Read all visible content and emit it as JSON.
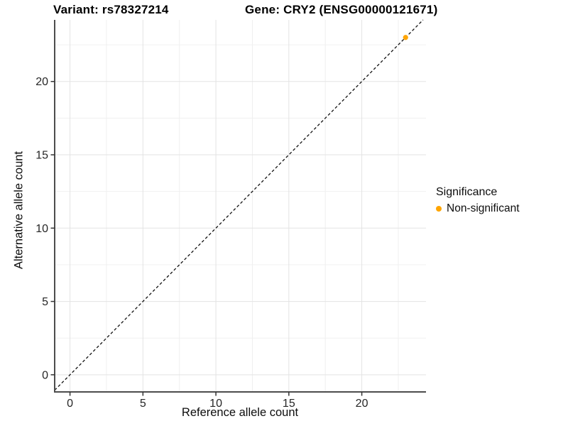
{
  "chart_data": {
    "type": "scatter",
    "title_left": "Variant: rs78327214",
    "title_right": "Gene: CRY2 (ENSG00000121671)",
    "xlabel": "Reference allele count",
    "ylabel": "Alternative allele count",
    "xlim": [
      -1.05,
      24.4
    ],
    "ylim": [
      -1.17,
      24.2
    ],
    "x_major_ticks": [
      0,
      5,
      10,
      15,
      20
    ],
    "x_minor_ticks": [
      2.5,
      7.5,
      12.5,
      17.5,
      22.5
    ],
    "y_major_ticks": [
      0,
      5,
      10,
      15,
      20
    ],
    "y_minor_ticks": [
      2.5,
      7.5,
      12.5,
      17.5,
      22.5
    ],
    "grid": true,
    "series": [
      {
        "name": "Non-significant",
        "color": "#FFA500",
        "points": [
          [
            23,
            23
          ]
        ]
      }
    ],
    "reference_line": {
      "type": "abline",
      "slope": 1,
      "intercept": 0,
      "style": "dashed",
      "color": "#111111"
    },
    "legend": {
      "title": "Significance",
      "position": "right",
      "entries": [
        {
          "label": "Non-significant",
          "color": "#FFA500"
        }
      ]
    }
  },
  "colors": {
    "background": "#ffffff",
    "axis_line": "#4d4d4d",
    "tick_mark": "#333333",
    "tick_label": "#262626",
    "grid_major": "#e3e3e3",
    "grid_minor": "#f0f0f0",
    "point": "#FFA500"
  }
}
